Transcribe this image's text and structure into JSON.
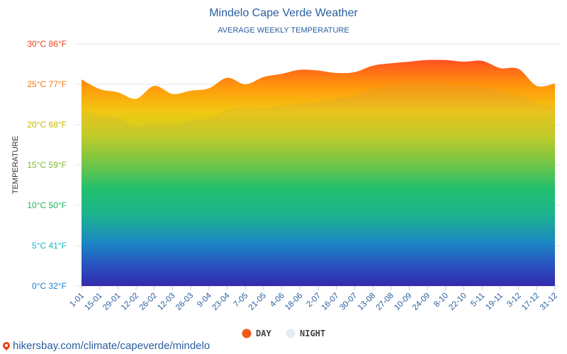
{
  "colors": {
    "title": "#2a5d9f",
    "day_legend": "#f05a14",
    "night_legend": "#e6ebf5",
    "grid": "#e6e6e6"
  },
  "source_text": "hikersbay.com/climate/capeverde/mindelo",
  "chart_data": {
    "type": "area",
    "title": "Mindelo Cape Verde Weather",
    "subtitle": "AVERAGE WEEKLY TEMPERATURE",
    "ylabel": "TEMPERATURE",
    "ylim": [
      0,
      30
    ],
    "grid": true,
    "legend_position": "bottom",
    "y_ticks": [
      {
        "value": 0,
        "label": "0°C 32°F",
        "color": "#1e7fd0"
      },
      {
        "value": 5,
        "label": "5°C 41°F",
        "color": "#12b8c4"
      },
      {
        "value": 10,
        "label": "10°C 50°F",
        "color": "#22b35a"
      },
      {
        "value": 15,
        "label": "15°C 59°F",
        "color": "#7cb82f"
      },
      {
        "value": 20,
        "label": "20°C 68°F",
        "color": "#c9b400"
      },
      {
        "value": 25,
        "label": "25°C 77°F",
        "color": "#f07a0a"
      },
      {
        "value": 30,
        "label": "30°C 86°F",
        "color": "#e8421c"
      }
    ],
    "categories": [
      "1-01",
      "15-01",
      "29-01",
      "12-02",
      "26-02",
      "12-03",
      "26-03",
      "9-04",
      "23-04",
      "7-05",
      "21-05",
      "4-06",
      "18-06",
      "2-07",
      "16-07",
      "30-07",
      "13-08",
      "27-08",
      "10-09",
      "24-09",
      "8-10",
      "22-10",
      "5-11",
      "19-11",
      "3-12",
      "17-12",
      "31-12"
    ],
    "series": [
      {
        "name": "DAY",
        "values": [
          25.6,
          24.4,
          24.0,
          23.2,
          24.8,
          23.8,
          24.2,
          24.5,
          25.8,
          25.0,
          25.9,
          26.3,
          26.8,
          26.7,
          26.4,
          26.5,
          27.3,
          27.6,
          27.8,
          28.0,
          28.0,
          27.8,
          27.9,
          27.0,
          26.9,
          24.8,
          25.1
        ]
      },
      {
        "name": "NIGHT",
        "values": [
          21.8,
          21.2,
          20.8,
          19.8,
          20.2,
          20.0,
          20.5,
          20.8,
          21.8,
          22.2,
          22.0,
          22.4,
          22.6,
          22.8,
          23.2,
          23.6,
          24.4,
          24.9,
          25.1,
          25.2,
          25.0,
          24.8,
          24.6,
          24.2,
          23.6,
          22.6,
          22.2
        ]
      }
    ]
  }
}
